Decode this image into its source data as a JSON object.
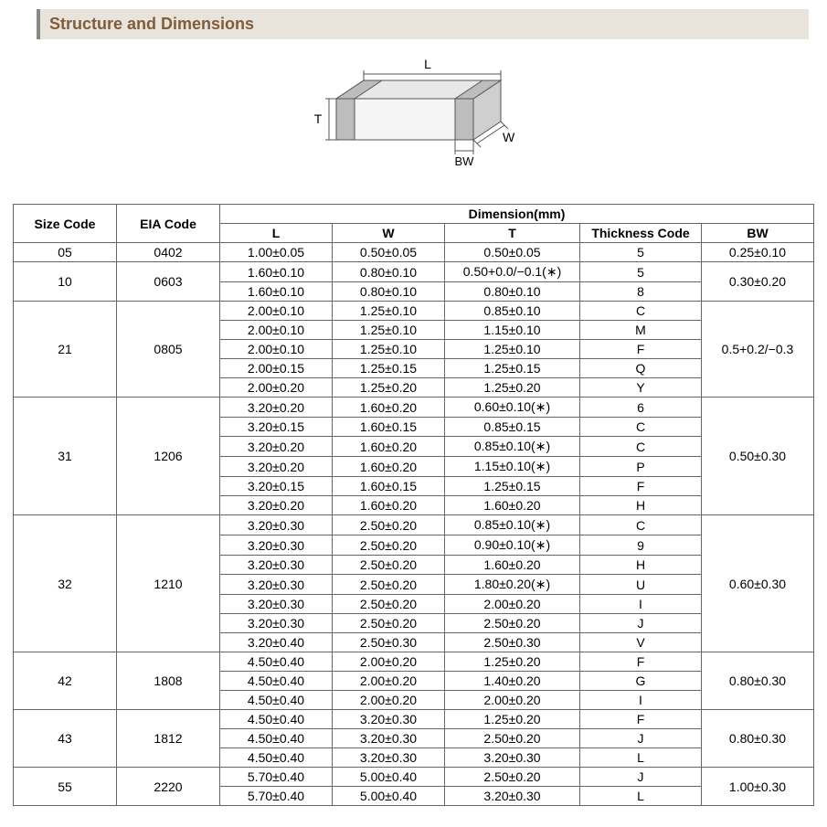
{
  "section_title": "Structure and Dimensions",
  "diagram": {
    "labels": {
      "L": "L",
      "W": "W",
      "T": "T",
      "BW": "BW"
    },
    "stroke": "#555555",
    "fill_top": "#e0e0e0",
    "fill_side": "#bfbfbf",
    "fill_front": "#f0f0f0",
    "band_fill": "#b8b8b8"
  },
  "table": {
    "header_row1": {
      "size_code": "Size Code",
      "eia_code": "EIA Code",
      "dimension": "Dimension(mm)"
    },
    "header_row2": {
      "L": "L",
      "W": "W",
      "T": "T",
      "thk": "Thickness  Code",
      "BW": "BW"
    },
    "groups": [
      {
        "size": "05",
        "eia": "0402",
        "bw": "0.25±0.10",
        "rows": [
          {
            "L": "1.00±0.05",
            "W": "0.50±0.05",
            "T": "0.50±0.05",
            "code": "5"
          }
        ]
      },
      {
        "size": "10",
        "eia": "0603",
        "bw": "0.30±0.20",
        "rows": [
          {
            "L": "1.60±0.10",
            "W": "0.80±0.10",
            "T": "0.50+0.0/−0.1(∗)",
            "code": "5"
          },
          {
            "L": "1.60±0.10",
            "W": "0.80±0.10",
            "T": "0.80±0.10",
            "code": "8"
          }
        ]
      },
      {
        "size": "21",
        "eia": "0805",
        "bw": "0.5+0.2/−0.3",
        "rows": [
          {
            "L": "2.00±0.10",
            "W": "1.25±0.10",
            "T": "0.85±0.10",
            "code": "C"
          },
          {
            "L": "2.00±0.10",
            "W": "1.25±0.10",
            "T": "1.15±0.10",
            "code": "M"
          },
          {
            "L": "2.00±0.10",
            "W": "1.25±0.10",
            "T": "1.25±0.10",
            "code": "F"
          },
          {
            "L": "2.00±0.15",
            "W": "1.25±0.15",
            "T": "1.25±0.15",
            "code": "Q"
          },
          {
            "L": "2.00±0.20",
            "W": "1.25±0.20",
            "T": "1.25±0.20",
            "code": "Y"
          }
        ]
      },
      {
        "size": "31",
        "eia": "1206",
        "bw": "0.50±0.30",
        "rows": [
          {
            "L": "3.20±0.20",
            "W": "1.60±0.20",
            "T": "0.60±0.10(∗)",
            "code": "6"
          },
          {
            "L": "3.20±0.15",
            "W": "1.60±0.15",
            "T": "0.85±0.15",
            "code": "C"
          },
          {
            "L": "3.20±0.20",
            "W": "1.60±0.20",
            "T": "0.85±0.10(∗)",
            "code": "C"
          },
          {
            "L": "3.20±0.20",
            "W": "1.60±0.20",
            "T": "1.15±0.10(∗)",
            "code": "P"
          },
          {
            "L": "3.20±0.15",
            "W": "1.60±0.15",
            "T": "1.25±0.15",
            "code": "F"
          },
          {
            "L": "3.20±0.20",
            "W": "1.60±0.20",
            "T": "1.60±0.20",
            "code": "H"
          }
        ]
      },
      {
        "size": "32",
        "eia": "1210",
        "bw": "0.60±0.30",
        "rows": [
          {
            "L": "3.20±0.30",
            "W": "2.50±0.20",
            "T": "0.85±0.10(∗)",
            "code": "C"
          },
          {
            "L": "3.20±0.30",
            "W": "2.50±0.20",
            "T": "0.90±0.10(∗)",
            "code": "9"
          },
          {
            "L": "3.20±0.30",
            "W": "2.50±0.20",
            "T": "1.60±0.20",
            "code": "H"
          },
          {
            "L": "3.20±0.30",
            "W": "2.50±0.20",
            "T": "1.80±0.20(∗)",
            "code": "U"
          },
          {
            "L": "3.20±0.30",
            "W": "2.50±0.20",
            "T": "2.00±0.20",
            "code": "I"
          },
          {
            "L": "3.20±0.30",
            "W": "2.50±0.20",
            "T": "2.50±0.20",
            "code": "J"
          },
          {
            "L": "3.20±0.40",
            "W": "2.50±0.30",
            "T": "2.50±0.30",
            "code": "V"
          }
        ]
      },
      {
        "size": "42",
        "eia": "1808",
        "bw": "0.80±0.30",
        "rows": [
          {
            "L": "4.50±0.40",
            "W": "2.00±0.20",
            "T": "1.25±0.20",
            "code": "F"
          },
          {
            "L": "4.50±0.40",
            "W": "2.00±0.20",
            "T": "1.40±0.20",
            "code": "G"
          },
          {
            "L": "4.50±0.40",
            "W": "2.00±0.20",
            "T": "2.00±0.20",
            "code": "I"
          }
        ]
      },
      {
        "size": "43",
        "eia": "1812",
        "bw": "0.80±0.30",
        "rows": [
          {
            "L": "4.50±0.40",
            "W": "3.20±0.30",
            "T": "1.25±0.20",
            "code": "F"
          },
          {
            "L": "4.50±0.40",
            "W": "3.20±0.30",
            "T": "2.50±0.20",
            "code": "J"
          },
          {
            "L": "4.50±0.40",
            "W": "3.20±0.30",
            "T": "3.20±0.30",
            "code": "L"
          }
        ]
      },
      {
        "size": "55",
        "eia": "2220",
        "bw": "1.00±0.30",
        "rows": [
          {
            "L": "5.70±0.40",
            "W": "5.00±0.40",
            "T": "2.50±0.20",
            "code": "J"
          },
          {
            "L": "5.70±0.40",
            "W": "5.00±0.40",
            "T": "3.20±0.30",
            "code": "L"
          }
        ]
      }
    ],
    "col_widths": {
      "size": 100,
      "eia": 100,
      "L": 110,
      "W": 110,
      "T": 135,
      "code": 120,
      "BW": 110
    }
  }
}
